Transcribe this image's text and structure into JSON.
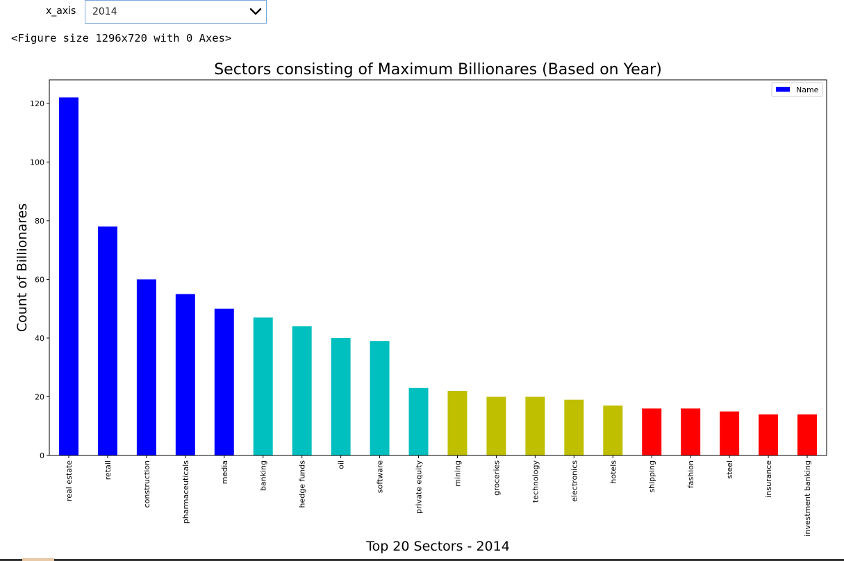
{
  "widget": {
    "label": "x_axis",
    "selected": "2014"
  },
  "console_output": "<Figure size 1296x720 with 0 Axes>",
  "colors": {
    "blue": "#0000ff",
    "cyan": "#00bfbf",
    "olive": "#bfbf00",
    "red": "#ff0000",
    "select_border": "#7aa7d9"
  },
  "chart_data": {
    "type": "bar",
    "title": "Sectors consisting of Maximum Billionares (Based on Year)",
    "xlabel": "Top 20 Sectors - 2014",
    "ylabel": "Count of Billionares",
    "ylim": [
      0,
      128
    ],
    "yticks": [
      0,
      20,
      40,
      60,
      80,
      100,
      120
    ],
    "legend": {
      "position": "top-right",
      "entries": [
        "Name"
      ]
    },
    "grid": false,
    "categories": [
      "real estate",
      "retail",
      "construction",
      "pharmaceuticals",
      "media",
      "banking",
      "hedge funds",
      "oil",
      "software",
      "private equity",
      "mining",
      "groceries",
      "technology",
      "electronics",
      "hotels",
      "shipping",
      "fashion",
      "steel",
      "insurance",
      "investment banking"
    ],
    "series": [
      {
        "name": "Name",
        "values": [
          122,
          78,
          60,
          55,
          50,
          47,
          44,
          40,
          39,
          23,
          22,
          20,
          20,
          19,
          17,
          16,
          16,
          15,
          14,
          14
        ],
        "colors": [
          "blue",
          "blue",
          "blue",
          "blue",
          "blue",
          "cyan",
          "cyan",
          "cyan",
          "cyan",
          "cyan",
          "olive",
          "olive",
          "olive",
          "olive",
          "olive",
          "red",
          "red",
          "red",
          "red",
          "red"
        ]
      }
    ]
  }
}
